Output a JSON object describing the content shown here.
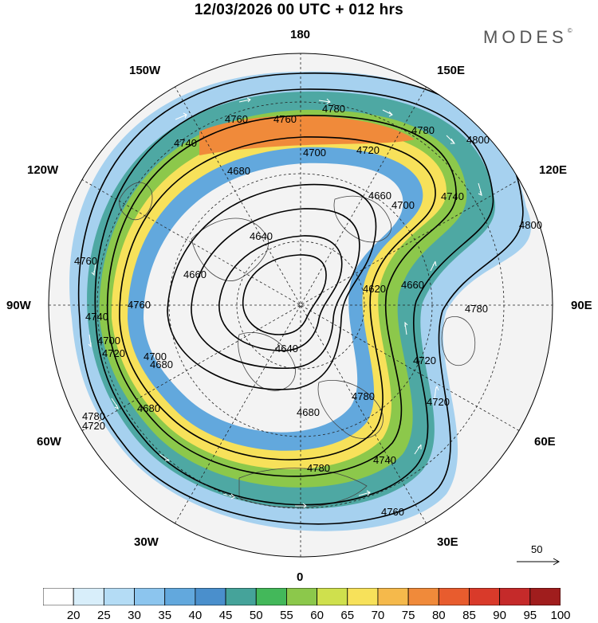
{
  "header": {
    "title": "12/03/2026  00 UTC  + 012 hrs",
    "brand": "MODES",
    "brand_mark": "©"
  },
  "longitude_labels": {
    "top": "180",
    "bottom": "0",
    "left": "90W",
    "right": "90E",
    "top_left": "150W",
    "top_right": "150E",
    "upper_left": "120W",
    "upper_right": "120E",
    "lower_left": "60W",
    "lower_right": "60E",
    "bottom_left": "30W",
    "bottom_right": "30E"
  },
  "contour_labels": [
    "4760",
    "4760",
    "4780",
    "4780",
    "4800",
    "4740",
    "4700",
    "4720",
    "4680",
    "4660",
    "4700",
    "4740",
    "4800",
    "4640",
    "4660",
    "4620",
    "4660",
    "4780",
    "4760",
    "4740",
    "4760",
    "4720",
    "4700",
    "4680",
    "4640",
    "4680",
    "4780",
    "4720",
    "4720",
    "4740",
    "4780",
    "4780",
    "4760",
    "4720",
    "4700",
    "4680"
  ],
  "wind_scale": {
    "value": "50",
    "arrow": "arrow-right-icon"
  },
  "colorbar": {
    "labels": [
      "20",
      "25",
      "30",
      "35",
      "40",
      "45",
      "50",
      "55",
      "60",
      "65",
      "70",
      "75",
      "80",
      "85",
      "90",
      "95",
      "100"
    ],
    "colors": [
      "#ffffff",
      "#d8eefa",
      "#b4dcf5",
      "#8cc5ee",
      "#62a8dd",
      "#4a8fcc",
      "#45a39a",
      "#43b85a",
      "#8cc84b",
      "#cfe04d",
      "#f7e15a",
      "#f5b94b",
      "#f08a3a",
      "#e85c2e",
      "#d93a2a",
      "#c52a2a",
      "#a01d1d"
    ]
  },
  "map": {
    "background": "#f2f2f2",
    "land_outline": "#444444",
    "wind_vectors": "white",
    "contour_line": "#000000"
  }
}
